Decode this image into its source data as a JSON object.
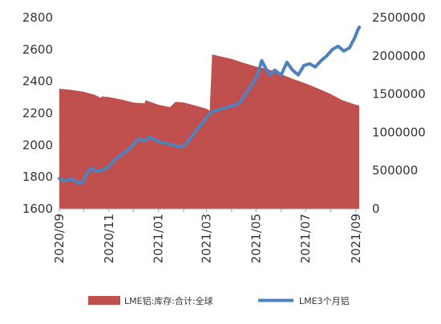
{
  "chart_data": {
    "type": "area",
    "x_dates": [
      "2020-09-01",
      "2020-10-01",
      "2020-11-01",
      "2020-12-01",
      "2021-01-01",
      "2021-02-01",
      "2021-03-01",
      "2021-04-01",
      "2021-05-01",
      "2021-06-01",
      "2021-07-01",
      "2021-08-01",
      "2021-09-01"
    ],
    "x_tick_labels": [
      "2020/09",
      "2020/11",
      "2021/01",
      "2021/03",
      "2021/05",
      "2021/07",
      "2021/09"
    ],
    "x_tick_dates": [
      "2020-09-01",
      "2020-11-01",
      "2021-01-01",
      "2021-03-01",
      "2021-05-01",
      "2021-07-01",
      "2021-09-01"
    ],
    "y_left": {
      "min": 1600,
      "max": 2800,
      "ticks": [
        1600,
        1800,
        2000,
        2200,
        2400,
        2600,
        2800
      ]
    },
    "y_right": {
      "min": 0,
      "max": 2500000,
      "ticks": [
        0,
        500000,
        1000000,
        1500000,
        2000000,
        2500000
      ]
    },
    "series": [
      {
        "name": "LME铝:库存:合计:全球",
        "type": "area",
        "axis": "right",
        "color": "#c0504d",
        "points": [
          [
            "2020-09-01",
            1570000
          ],
          [
            "2020-09-15",
            1555000
          ],
          [
            "2020-10-01",
            1530000
          ],
          [
            "2020-10-15",
            1490000
          ],
          [
            "2020-10-22",
            1450000
          ],
          [
            "2020-10-23",
            1470000
          ],
          [
            "2020-11-01",
            1460000
          ],
          [
            "2020-11-20",
            1420000
          ],
          [
            "2020-12-01",
            1390000
          ],
          [
            "2020-12-15",
            1380000
          ],
          [
            "2020-12-16",
            1420000
          ],
          [
            "2021-01-01",
            1360000
          ],
          [
            "2021-01-15",
            1330000
          ],
          [
            "2021-01-22",
            1400000
          ],
          [
            "2021-02-01",
            1390000
          ],
          [
            "2021-02-15",
            1350000
          ],
          [
            "2021-03-01",
            1310000
          ],
          [
            "2021-03-05",
            1280000
          ],
          [
            "2021-03-08",
            2020000
          ],
          [
            "2021-03-15",
            2000000
          ],
          [
            "2021-04-01",
            1960000
          ],
          [
            "2021-04-15",
            1910000
          ],
          [
            "2021-05-01",
            1860000
          ],
          [
            "2021-05-15",
            1830000
          ],
          [
            "2021-06-01",
            1760000
          ],
          [
            "2021-06-15",
            1700000
          ],
          [
            "2021-07-01",
            1640000
          ],
          [
            "2021-07-15",
            1580000
          ],
          [
            "2021-08-01",
            1500000
          ],
          [
            "2021-08-15",
            1420000
          ],
          [
            "2021-09-01",
            1360000
          ],
          [
            "2021-09-05",
            1350000
          ]
        ]
      },
      {
        "name": "LME3个月铝",
        "type": "line",
        "axis": "left",
        "color": "#4f81bd",
        "points": [
          [
            "2020-09-01",
            1790
          ],
          [
            "2020-09-05",
            1780
          ],
          [
            "2020-09-10",
            1775
          ],
          [
            "2020-09-15",
            1790
          ],
          [
            "2020-09-20",
            1775
          ],
          [
            "2020-09-25",
            1760
          ],
          [
            "2020-09-30",
            1770
          ],
          [
            "2020-10-05",
            1825
          ],
          [
            "2020-10-10",
            1855
          ],
          [
            "2020-10-15",
            1840
          ],
          [
            "2020-10-20",
            1835
          ],
          [
            "2020-10-25",
            1845
          ],
          [
            "2020-11-01",
            1865
          ],
          [
            "2020-11-08",
            1905
          ],
          [
            "2020-11-15",
            1935
          ],
          [
            "2020-11-22",
            1960
          ],
          [
            "2020-11-30",
            1995
          ],
          [
            "2020-12-07",
            2040
          ],
          [
            "2020-12-14",
            2025
          ],
          [
            "2020-12-21",
            2050
          ],
          [
            "2020-12-28",
            2030
          ],
          [
            "2021-01-05",
            2015
          ],
          [
            "2021-01-12",
            2010
          ],
          [
            "2021-01-19",
            2000
          ],
          [
            "2021-01-26",
            1990
          ],
          [
            "2021-02-02",
            1995
          ],
          [
            "2021-02-09",
            2040
          ],
          [
            "2021-02-16",
            2090
          ],
          [
            "2021-02-23",
            2130
          ],
          [
            "2021-03-01",
            2175
          ],
          [
            "2021-03-08",
            2210
          ],
          [
            "2021-03-15",
            2220
          ],
          [
            "2021-03-22",
            2230
          ],
          [
            "2021-03-29",
            2240
          ],
          [
            "2021-04-05",
            2250
          ],
          [
            "2021-04-12",
            2270
          ],
          [
            "2021-04-19",
            2330
          ],
          [
            "2021-04-26",
            2380
          ],
          [
            "2021-05-03",
            2440
          ],
          [
            "2021-05-08",
            2530
          ],
          [
            "2021-05-13",
            2480
          ],
          [
            "2021-05-18",
            2440
          ],
          [
            "2021-05-24",
            2470
          ],
          [
            "2021-06-01",
            2440
          ],
          [
            "2021-06-08",
            2520
          ],
          [
            "2021-06-15",
            2470
          ],
          [
            "2021-06-22",
            2440
          ],
          [
            "2021-06-29",
            2500
          ],
          [
            "2021-07-06",
            2510
          ],
          [
            "2021-07-13",
            2490
          ],
          [
            "2021-07-20",
            2530
          ],
          [
            "2021-07-27",
            2560
          ],
          [
            "2021-08-03",
            2600
          ],
          [
            "2021-08-10",
            2620
          ],
          [
            "2021-08-17",
            2590
          ],
          [
            "2021-08-24",
            2610
          ],
          [
            "2021-08-31",
            2680
          ],
          [
            "2021-09-03",
            2720
          ],
          [
            "2021-09-05",
            2740
          ]
        ]
      }
    ],
    "legend": [
      {
        "label": "LME铝:库存:合计:全球",
        "color": "#c0504d",
        "shape": "box"
      },
      {
        "label": "LME3个月铝",
        "color": "#4f81bd",
        "shape": "line"
      }
    ],
    "legend_position": "bottom",
    "grid": false
  }
}
